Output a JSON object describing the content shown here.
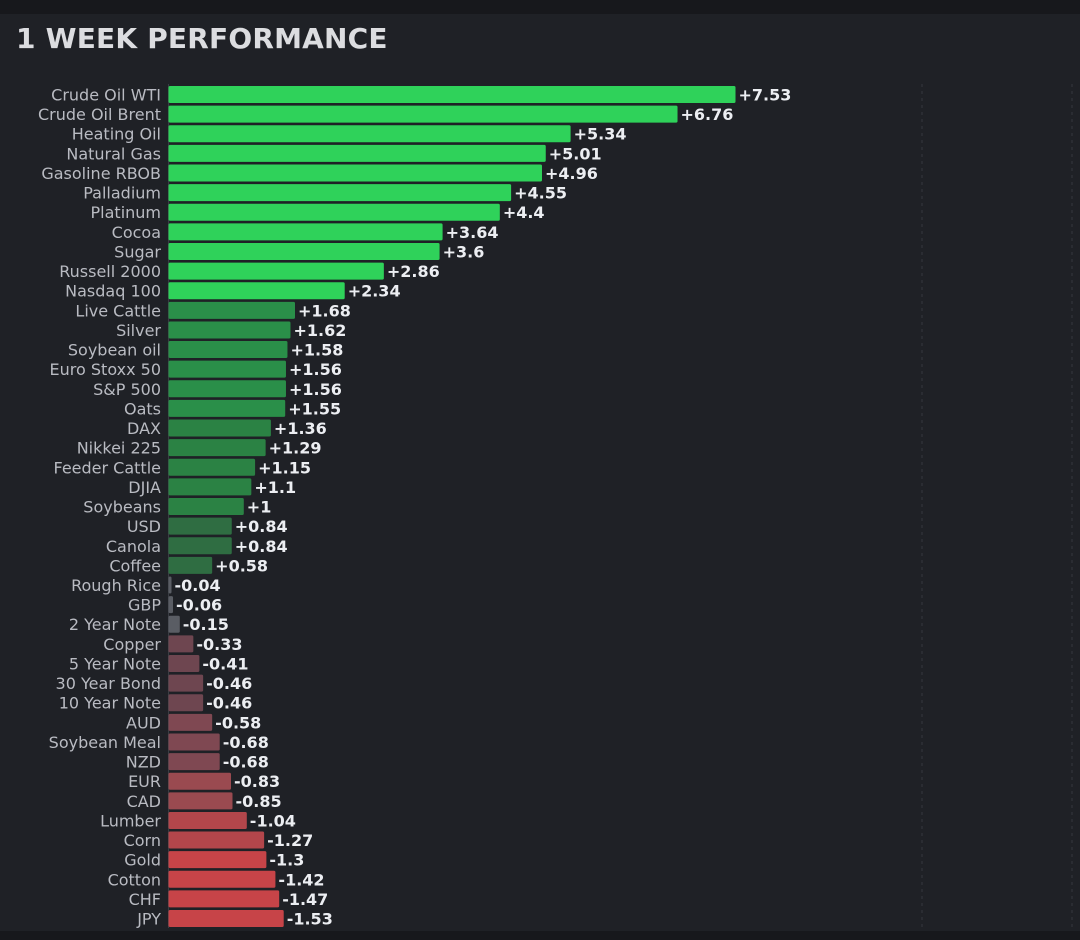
{
  "header": {
    "title": "1 WEEK PERFORMANCE"
  },
  "chart_data": {
    "type": "bar",
    "orientation": "horizontal",
    "title": "1 WEEK PERFORMANCE",
    "xlabel": "",
    "ylabel": "",
    "xlim": [
      -1.53,
      10.3
    ],
    "grid": true,
    "legend": "none",
    "colors": {
      "positive_strong": "#2fd25a",
      "positive_weak": "#2e7d44",
      "neutral": "#5a5d64",
      "negative_weak": "#7a4a52",
      "negative_strong": "#c74448"
    },
    "categories": [
      "Crude Oil WTI",
      "Crude Oil Brent",
      "Heating Oil",
      "Natural Gas",
      "Gasoline RBOB",
      "Palladium",
      "Platinum",
      "Cocoa",
      "Sugar",
      "Russell 2000",
      "Nasdaq 100",
      "Live Cattle",
      "Silver",
      "Soybean oil",
      "Euro Stoxx 50",
      "S&P 500",
      "Oats",
      "DAX",
      "Nikkei 225",
      "Feeder Cattle",
      "DJIA",
      "Soybeans",
      "USD",
      "Canola",
      "Coffee",
      "Rough Rice",
      "GBP",
      "2 Year Note",
      "Copper",
      "5 Year Note",
      "30 Year Bond",
      "10 Year Note",
      "AUD",
      "Soybean Meal",
      "NZD",
      "EUR",
      "CAD",
      "Lumber",
      "Corn",
      "Gold",
      "Cotton",
      "CHF",
      "JPY"
    ],
    "values": [
      7.53,
      6.76,
      5.34,
      5.01,
      4.96,
      4.55,
      4.4,
      3.64,
      3.6,
      2.86,
      2.34,
      1.68,
      1.62,
      1.58,
      1.56,
      1.56,
      1.55,
      1.36,
      1.29,
      1.15,
      1.1,
      1,
      0.84,
      0.84,
      0.58,
      -0.04,
      -0.06,
      -0.15,
      -0.33,
      -0.41,
      -0.46,
      -0.46,
      -0.58,
      -0.68,
      -0.68,
      -0.83,
      -0.85,
      -1.04,
      -1.27,
      -1.3,
      -1.42,
      -1.47,
      -1.53
    ],
    "value_labels": [
      "+7.53",
      "+6.76",
      "+5.34",
      "+5.01",
      "+4.96",
      "+4.55",
      "+4.4",
      "+3.64",
      "+3.6",
      "+2.86",
      "+2.34",
      "+1.68",
      "+1.62",
      "+1.58",
      "+1.56",
      "+1.56",
      "+1.55",
      "+1.36",
      "+1.29",
      "+1.15",
      "+1.1",
      "+1",
      "+0.84",
      "+0.84",
      "+0.58",
      "-0.04",
      "-0.06",
      "-0.15",
      "-0.33",
      "-0.41",
      "-0.46",
      "-0.46",
      "-0.58",
      "-0.68",
      "-0.68",
      "-0.83",
      "-0.85",
      "-1.04",
      "-1.27",
      "-1.3",
      "-1.42",
      "-1.47",
      "-1.53"
    ]
  }
}
